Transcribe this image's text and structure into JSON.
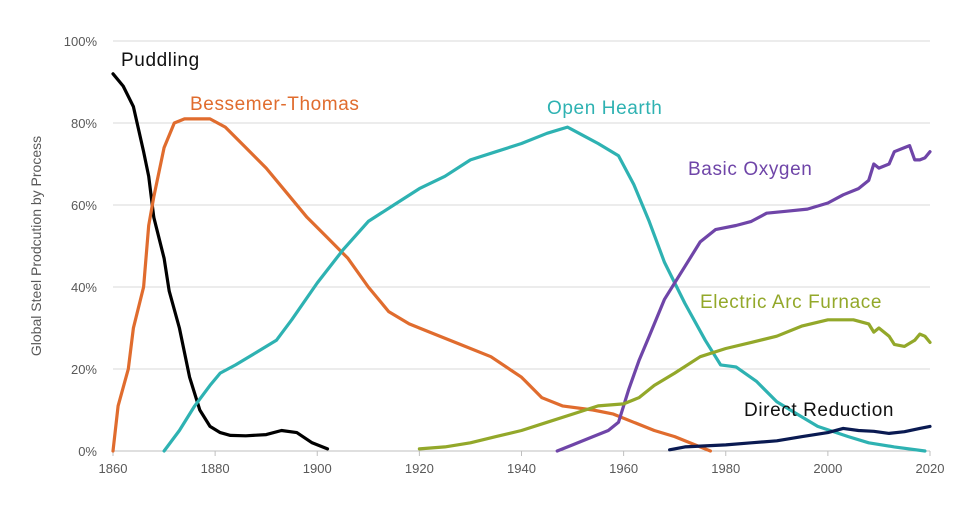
{
  "chart_data": {
    "type": "line",
    "title": "",
    "xlabel": "",
    "ylabel": "Global Steel Prodcution by Process",
    "xlim": [
      1860,
      2020
    ],
    "ylim": [
      0,
      100
    ],
    "x_ticks": [
      "1860",
      "1880",
      "1900",
      "1920",
      "1940",
      "1960",
      "1980",
      "2000",
      "2020"
    ],
    "y_ticks": [
      "0%",
      "20%",
      "40%",
      "60%",
      "80%",
      "100%"
    ],
    "grid": true,
    "legend": "inline labels",
    "series": [
      {
        "name": "Puddling",
        "color": "#000000",
        "points": [
          [
            1860,
            92
          ],
          [
            1862,
            89
          ],
          [
            1864,
            84
          ],
          [
            1866,
            73
          ],
          [
            1867,
            67
          ],
          [
            1868,
            57
          ],
          [
            1870,
            47
          ],
          [
            1871,
            39
          ],
          [
            1873,
            30
          ],
          [
            1875,
            18
          ],
          [
            1877,
            10
          ],
          [
            1879,
            6
          ],
          [
            1881,
            4.5
          ],
          [
            1883,
            3.8
          ],
          [
            1886,
            3.7
          ],
          [
            1890,
            4
          ],
          [
            1893,
            5
          ],
          [
            1896,
            4.5
          ],
          [
            1899,
            2
          ],
          [
            1902,
            0.5
          ]
        ]
      },
      {
        "name": "Bessemer-Thomas",
        "color": "#e06c2e",
        "points": [
          [
            1860,
            0
          ],
          [
            1861,
            11
          ],
          [
            1863,
            20
          ],
          [
            1864,
            30
          ],
          [
            1866,
            40
          ],
          [
            1867,
            55
          ],
          [
            1868,
            62
          ],
          [
            1870,
            74
          ],
          [
            1872,
            80
          ],
          [
            1874,
            81
          ],
          [
            1879,
            81
          ],
          [
            1882,
            79
          ],
          [
            1886,
            74
          ],
          [
            1890,
            69
          ],
          [
            1894,
            63
          ],
          [
            1898,
            57
          ],
          [
            1902,
            52
          ],
          [
            1906,
            47
          ],
          [
            1910,
            40
          ],
          [
            1914,
            34
          ],
          [
            1918,
            31
          ],
          [
            1922,
            29
          ],
          [
            1928,
            26
          ],
          [
            1934,
            23
          ],
          [
            1940,
            18
          ],
          [
            1944,
            13
          ],
          [
            1948,
            11
          ],
          [
            1954,
            10
          ],
          [
            1958,
            9
          ],
          [
            1962,
            7
          ],
          [
            1966,
            5
          ],
          [
            1970,
            3.5
          ],
          [
            1974,
            1.5
          ],
          [
            1977,
            0
          ]
        ]
      },
      {
        "name": "Open Hearth",
        "color": "#2eb2b2",
        "points": [
          [
            1870,
            0
          ],
          [
            1873,
            5
          ],
          [
            1876,
            11
          ],
          [
            1879,
            16
          ],
          [
            1881,
            19
          ],
          [
            1884,
            21
          ],
          [
            1888,
            24
          ],
          [
            1892,
            27
          ],
          [
            1895,
            32
          ],
          [
            1900,
            41
          ],
          [
            1905,
            49
          ],
          [
            1910,
            56
          ],
          [
            1915,
            60
          ],
          [
            1920,
            64
          ],
          [
            1925,
            67
          ],
          [
            1930,
            71
          ],
          [
            1935,
            73
          ],
          [
            1940,
            75
          ],
          [
            1945,
            77.5
          ],
          [
            1949,
            79
          ],
          [
            1952,
            77
          ],
          [
            1955,
            75
          ],
          [
            1959,
            72
          ],
          [
            1962,
            65
          ],
          [
            1965,
            56
          ],
          [
            1968,
            46
          ],
          [
            1972,
            36
          ],
          [
            1976,
            27
          ],
          [
            1979,
            21
          ],
          [
            1982,
            20.5
          ],
          [
            1986,
            17
          ],
          [
            1990,
            12
          ],
          [
            1994,
            9
          ],
          [
            1998,
            6
          ],
          [
            2004,
            3.5
          ],
          [
            2008,
            2
          ],
          [
            2013,
            1
          ],
          [
            2019,
            0
          ]
        ]
      },
      {
        "name": "Basic Oxygen",
        "color": "#6f45a8",
        "points": [
          [
            1947,
            0
          ],
          [
            1950,
            1.5
          ],
          [
            1954,
            3.5
          ],
          [
            1957,
            5
          ],
          [
            1959,
            7
          ],
          [
            1961,
            15
          ],
          [
            1963,
            22
          ],
          [
            1965,
            28
          ],
          [
            1968,
            37
          ],
          [
            1971,
            43
          ],
          [
            1975,
            51
          ],
          [
            1978,
            54
          ],
          [
            1982,
            55
          ],
          [
            1985,
            56
          ],
          [
            1988,
            58
          ],
          [
            1992,
            58.5
          ],
          [
            1996,
            59
          ],
          [
            2000,
            60.5
          ],
          [
            2003,
            62.5
          ],
          [
            2006,
            64
          ],
          [
            2008,
            66
          ],
          [
            2009,
            70
          ],
          [
            2010,
            69
          ],
          [
            2012,
            70
          ],
          [
            2013,
            73
          ],
          [
            2015,
            74
          ],
          [
            2016,
            74.5
          ],
          [
            2017,
            71
          ],
          [
            2018,
            71
          ],
          [
            2019,
            71.5
          ],
          [
            2020,
            73
          ]
        ]
      },
      {
        "name": "Electric Arc Furnace",
        "color": "#93a82a",
        "points": [
          [
            1920,
            0.5
          ],
          [
            1925,
            1
          ],
          [
            1930,
            2
          ],
          [
            1935,
            3.5
          ],
          [
            1940,
            5
          ],
          [
            1945,
            7
          ],
          [
            1950,
            9
          ],
          [
            1955,
            11
          ],
          [
            1960,
            11.5
          ],
          [
            1963,
            13
          ],
          [
            1966,
            16
          ],
          [
            1970,
            19
          ],
          [
            1975,
            23
          ],
          [
            1980,
            25
          ],
          [
            1985,
            26.5
          ],
          [
            1990,
            28
          ],
          [
            1995,
            30.5
          ],
          [
            2000,
            32
          ],
          [
            2005,
            32
          ],
          [
            2008,
            31
          ],
          [
            2009,
            29
          ],
          [
            2010,
            30
          ],
          [
            2012,
            28
          ],
          [
            2013,
            26
          ],
          [
            2015,
            25.5
          ],
          [
            2017,
            27
          ],
          [
            2018,
            28.5
          ],
          [
            2019,
            28
          ],
          [
            2020,
            26.5
          ]
        ]
      },
      {
        "name": "Direct Reduction",
        "color": "#0a1a52",
        "points": [
          [
            1969,
            0.3
          ],
          [
            1972,
            1
          ],
          [
            1975,
            1.2
          ],
          [
            1980,
            1.5
          ],
          [
            1985,
            2
          ],
          [
            1990,
            2.5
          ],
          [
            1995,
            3.5
          ],
          [
            2000,
            4.5
          ],
          [
            2003,
            5.5
          ],
          [
            2006,
            5
          ],
          [
            2009,
            4.8
          ],
          [
            2012,
            4.3
          ],
          [
            2015,
            4.7
          ],
          [
            2018,
            5.5
          ],
          [
            2020,
            6
          ]
        ]
      }
    ]
  }
}
